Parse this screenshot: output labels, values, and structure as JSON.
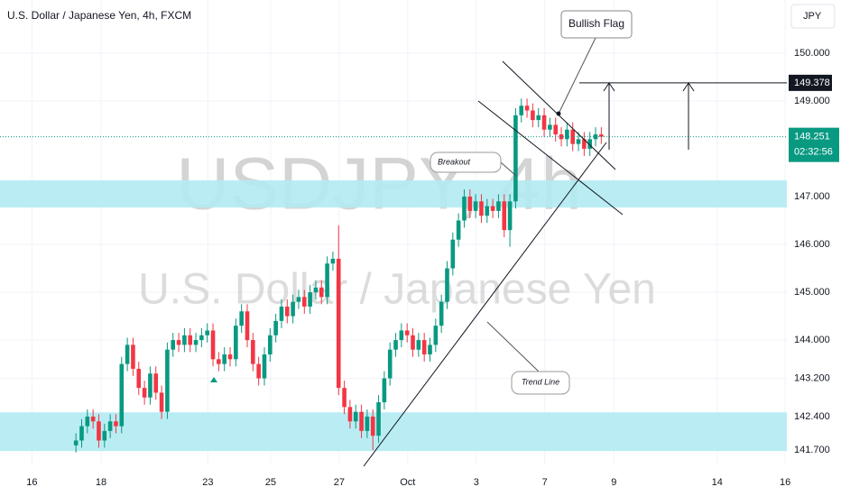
{
  "chart_data": {
    "type": "candlestick",
    "title": "U.S. Dollar / Japanese Yen, 4h, FXCM",
    "currency": "JPY",
    "watermark": "USDJPY, 4h",
    "watermark_subtitle": "U.S. Dollar / Japanese Yen",
    "up_color": "#089981",
    "down_color": "#f23645",
    "open": [
      141.8,
      141.9,
      142.2,
      142.4,
      142.3,
      141.9,
      142.1,
      142.3,
      142.2,
      143.5,
      143.9,
      143.4,
      143.0,
      142.8,
      143.3,
      142.9,
      142.5,
      143.8,
      144.0,
      143.9,
      144.1,
      143.9,
      144.0,
      144.1,
      144.2,
      143.6,
      143.5,
      143.7,
      143.6,
      144.3,
      144.6,
      144.0,
      143.5,
      143.2,
      143.7,
      144.1,
      144.4,
      144.7,
      144.5,
      144.8,
      144.9,
      144.7,
      145.0,
      145.1,
      144.9,
      145.6,
      145.7,
      143.0,
      142.6,
      142.3,
      142.5,
      142.1,
      142.4,
      142.0,
      142.7,
      143.2,
      143.8,
      144.0,
      144.2,
      144.1,
      143.8,
      144.0,
      143.7,
      143.9,
      144.3,
      144.8,
      145.5,
      146.1,
      146.5,
      147.0,
      146.7,
      146.9,
      146.6,
      146.8,
      146.7,
      146.9,
      146.3,
      146.9,
      148.7,
      148.9,
      148.8,
      148.6,
      148.7,
      148.4,
      148.5,
      148.3,
      148.2,
      148.4,
      148.1,
      148.2,
      148.0,
      148.2,
      148.3
    ],
    "high": [
      142.05,
      142.35,
      142.55,
      142.55,
      142.45,
      142.25,
      142.45,
      142.45,
      143.65,
      144.05,
      144.05,
      143.55,
      143.15,
      143.45,
      143.45,
      143.05,
      143.95,
      144.15,
      144.15,
      144.25,
      144.25,
      144.15,
      144.25,
      144.35,
      144.35,
      143.75,
      143.85,
      143.85,
      144.45,
      144.75,
      144.75,
      144.15,
      143.65,
      143.85,
      144.25,
      144.55,
      144.85,
      144.85,
      144.95,
      145.05,
      145.05,
      145.15,
      145.25,
      145.25,
      145.75,
      145.85,
      146.4,
      143.15,
      142.75,
      142.65,
      142.65,
      142.55,
      142.55,
      142.85,
      143.35,
      143.95,
      144.15,
      144.35,
      144.35,
      144.25,
      144.15,
      144.15,
      144.05,
      144.45,
      144.95,
      145.65,
      146.25,
      146.65,
      147.15,
      147.15,
      147.05,
      147.05,
      146.95,
      146.95,
      147.05,
      147.05,
      147.05,
      148.85,
      149.05,
      149.05,
      148.95,
      148.85,
      148.85,
      148.65,
      148.65,
      148.45,
      148.55,
      148.55,
      148.35,
      148.35,
      148.35,
      148.45,
      148.45
    ],
    "low": [
      141.65,
      141.75,
      142.05,
      142.15,
      141.75,
      141.75,
      141.95,
      142.05,
      142.05,
      143.35,
      143.25,
      142.85,
      142.65,
      142.65,
      142.75,
      142.35,
      142.35,
      143.65,
      143.75,
      143.75,
      143.75,
      143.75,
      143.85,
      143.95,
      143.45,
      143.35,
      143.35,
      143.45,
      143.45,
      144.15,
      143.85,
      143.35,
      143.05,
      143.05,
      143.55,
      143.95,
      144.25,
      144.35,
      144.35,
      144.65,
      144.55,
      144.55,
      144.85,
      144.75,
      144.75,
      145.45,
      142.85,
      142.45,
      142.15,
      142.15,
      141.95,
      141.95,
      141.7,
      141.85,
      142.55,
      143.05,
      143.65,
      143.85,
      143.95,
      143.65,
      143.65,
      143.55,
      143.55,
      143.75,
      144.15,
      144.65,
      145.35,
      145.95,
      146.35,
      146.55,
      146.55,
      146.45,
      146.45,
      146.55,
      146.55,
      146.15,
      145.95,
      146.75,
      148.55,
      148.65,
      148.45,
      148.45,
      148.25,
      148.25,
      148.15,
      148.05,
      148.05,
      147.95,
      147.95,
      147.85,
      147.85,
      148.05,
      148.1
    ],
    "close": [
      141.9,
      142.2,
      142.4,
      142.3,
      141.9,
      142.1,
      142.3,
      142.2,
      143.5,
      143.9,
      143.4,
      143.0,
      142.8,
      143.3,
      142.9,
      142.5,
      143.8,
      144.0,
      143.9,
      144.1,
      143.9,
      144.0,
      144.1,
      144.2,
      143.6,
      143.5,
      143.7,
      143.6,
      144.3,
      144.6,
      144.0,
      143.5,
      143.2,
      143.7,
      144.1,
      144.4,
      144.7,
      144.5,
      144.8,
      144.9,
      144.7,
      145.0,
      145.1,
      144.9,
      145.6,
      145.7,
      143.0,
      142.6,
      142.3,
      142.5,
      142.1,
      142.4,
      142.0,
      142.7,
      143.2,
      143.8,
      144.0,
      144.2,
      144.1,
      143.8,
      144.0,
      143.7,
      143.9,
      144.3,
      144.8,
      145.5,
      146.1,
      146.5,
      147.0,
      146.7,
      146.9,
      146.6,
      146.8,
      146.7,
      146.9,
      146.3,
      146.9,
      148.7,
      148.9,
      148.8,
      148.6,
      148.7,
      148.4,
      148.5,
      148.3,
      148.2,
      148.4,
      148.1,
      148.2,
      148.0,
      148.2,
      148.3,
      148.251
    ],
    "xlim": [
      -13.3,
      124.5
    ],
    "xticks": [
      {
        "value": -7.7,
        "label": "16"
      },
      {
        "value": 4.4,
        "label": "18"
      },
      {
        "value": 23.1,
        "label": "23"
      },
      {
        "value": 34.1,
        "label": "25"
      },
      {
        "value": 46.1,
        "label": "27"
      },
      {
        "value": 58.1,
        "label": "Oct"
      },
      {
        "value": 70.1,
        "label": "3"
      },
      {
        "value": 82.1,
        "label": "7"
      },
      {
        "value": 94.2,
        "label": "9"
      },
      {
        "value": 112.3,
        "label": "14"
      },
      {
        "value": 124.2,
        "label": "16"
      }
    ],
    "ylim": [
      141.4,
      151.11
    ],
    "yticks": [
      {
        "value": 150,
        "label": "150.000"
      },
      {
        "value": 149,
        "label": "149.000"
      },
      {
        "value": 147,
        "label": "147.000"
      },
      {
        "value": 146,
        "label": "146.000"
      },
      {
        "value": 145,
        "label": "145.000"
      },
      {
        "value": 144,
        "label": "144.000"
      },
      {
        "value": 143.2,
        "label": "143.200"
      },
      {
        "value": 142.4,
        "label": "142.400"
      },
      {
        "value": 141.7,
        "label": "141.700"
      }
    ],
    "grid": true,
    "last_price": 148.251,
    "countdown": "02:32:56",
    "target_price": 149.378,
    "zones": [
      {
        "low": 146.77,
        "high": 147.34
      },
      {
        "low": 141.68,
        "high": 142.49
      }
    ],
    "zone_color": "#b2ebf2",
    "annotations": {
      "flag": "Bullish Flag",
      "breakout": "Breakout",
      "trend": "Trend Line"
    }
  }
}
